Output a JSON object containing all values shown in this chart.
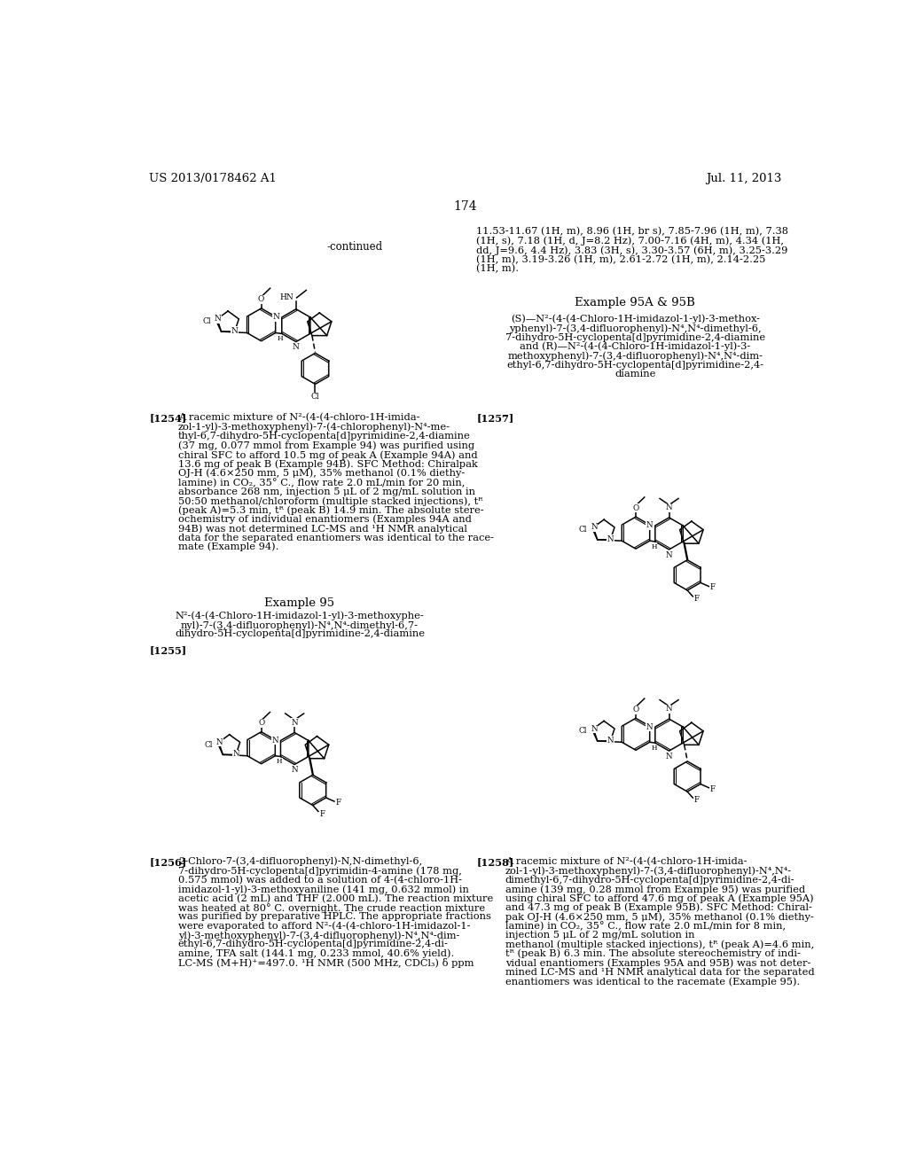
{
  "background_color": "#ffffff",
  "page_number": "174",
  "header_left": "US 2013/0178462 A1",
  "header_right": "Jul. 11, 2013",
  "continued_label": "-continued",
  "right_col_text1": "11.53-11.67 (1H, m), 8.96 (1H, br s), 7.85-7.96 (1H, m), 7.38",
  "right_col_text2": "(1H, s), 7.18 (1H, d, J=8.2 Hz), 7.00-7.16 (4H, m), 4.34 (1H,",
  "right_col_text3": "dd, J=9.6, 4.4 Hz), 3.83 (3H, s), 3.30-3.57 (6H, m), 3.25-3.29",
  "right_col_text4": "(1H, m), 3.19-3.26 (1H, m), 2.61-2.72 (1H, m), 2.14-2.25",
  "right_col_text5": "(1H, m).",
  "example_95A_95B_title": "Example 95A & 95B",
  "ref_1254": "[1254]",
  "text_1254_lines": [
    "A racemic mixture of N²-(4-(4-chloro-1H-imida-",
    "zol-1-yl)-3-methoxyphenyl)-7-(4-chlorophenyl)-N⁴-me-",
    "thyl-6,7-dihydro-5H-cyclopenta[d]pyrimidine-2,4-diamine",
    "(37 mg, 0.077 mmol from Example 94) was purified using",
    "chiral SFC to afford 10.5 mg of peak A (Example 94A) and",
    "13.6 mg of peak B (Example 94B). SFC Method: Chiralpak",
    "OJ-H (4.6×250 mm, 5 μM), 35% methanol (0.1% diethy-",
    "lamine) in CO₂, 35° C., flow rate 2.0 mL/min for 20 min,",
    "absorbance 268 nm, injection 5 μL of 2 mg/mL solution in",
    "50:50 methanol/chloroform (multiple stacked injections), tᴿ",
    "(peak A)=5.3 min, tᴿ (peak B) 14.9 min. The absolute stere-",
    "ochemistry of individual enantiomers (Examples 94A and",
    "94B) was not determined LC-MS and ¹H NMR analytical",
    "data for the separated enantiomers was identical to the race-",
    "mate (Example 94)."
  ],
  "example_95_title": "Example 95",
  "example_95_cmpd_lines": [
    "N²-(4-(4-Chloro-1H-imidazol-1-yl)-3-methoxyphe-",
    "nyl)-7-(3,4-difluorophenyl)-N⁴,N⁴-dimethyl-6,7-",
    "dihydro-5H-cyclopenta[d]pyrimidine-2,4-diamine"
  ],
  "ref_1255": "[1255]",
  "ref_1256": "[1256]",
  "text_1256_lines": [
    "2-Chloro-7-(3,4-difluorophenyl)-N,N-dimethyl-6,",
    "7-dihydro-5H-cyclopenta[d]pyrimidin-4-amine (178 mg,",
    "0.575 mmol) was added to a solution of 4-(4-chloro-1H-",
    "imidazol-1-yl)-3-methoxyaniline (141 mg, 0.632 mmol) in",
    "acetic acid (2 mL) and THF (2.000 mL). The reaction mixture",
    "was heated at 80° C. overnight. The crude reaction mixture",
    "was purified by preparative HPLC. The appropriate fractions",
    "were evaporated to afford N²-(4-(4-chloro-1H-imidazol-1-",
    "yl)-3-methoxyphenyl)-7-(3,4-difluorophenyl)-N⁴,N⁴-dim-",
    "ethyl-6,7-dihydro-5H-cyclopenta[d]pyrimidine-2,4-di-",
    "amine, TFA salt (144.1 mg, 0.233 mmol, 40.6% yield).",
    "LC-MS (M+H)⁺=497.0. ¹H NMR (500 MHz, CDCl₃) δ ppm"
  ],
  "compound_95AB_lines": [
    "(S)—N²-(4-(4-Chloro-1H-imidazol-1-yl)-3-methox-",
    "yphenyl)-7-(3,4-difluorophenyl)-N⁴,N⁴-dimethyl-6,",
    "7-dihydro-5H-cyclopenta[d]pyrimidine-2,4-diamine",
    "and (R)—N²-(4-(4-Chloro-1H-imidazol-1-yl)-3-",
    "methoxyphenyl)-7-(3,4-difluorophenyl)-N⁴,N⁴-dim-",
    "ethyl-6,7-dihydro-5H-cyclopenta[d]pyrimidine-2,4-",
    "diamine"
  ],
  "ref_1257": "[1257]",
  "ref_1258": "[1258]",
  "text_1258_lines": [
    "A racemic mixture of N²-(4-(4-chloro-1H-imida-",
    "zol-1-yl)-3-methoxyphenyl)-7-(3,4-difluorophenyl)-N⁴,N⁴-",
    "dimethyl-6,7-dihydro-5H-cyclopenta[d]pyrimidine-2,4-di-",
    "amine (139 mg, 0.28 mmol from Example 95) was purified",
    "using chiral SFC to afford 47.6 mg of peak A (Example 95A)",
    "and 47.3 mg of peak B (Example 95B). SFC Method: Chiral-",
    "pak OJ-H (4.6×250 mm, 5 μM), 35% methanol (0.1% diethy-",
    "lamine) in CO₂, 35° C., flow rate 2.0 mL/min for 8 min,",
    "injection 5 μL of 2 mg/mL solution in",
    "methanol (multiple stacked injections), tᴿ (peak A)=4.6 min,",
    "tᴿ (peak B) 6.3 min. The absolute stereochemistry of indi-",
    "vidual enantiomers (Examples 95A and 95B) was not deter-",
    "mined LC-MS and ¹H NMR analytical data for the separated",
    "enantiomers was identical to the racemate (Example 95)."
  ]
}
